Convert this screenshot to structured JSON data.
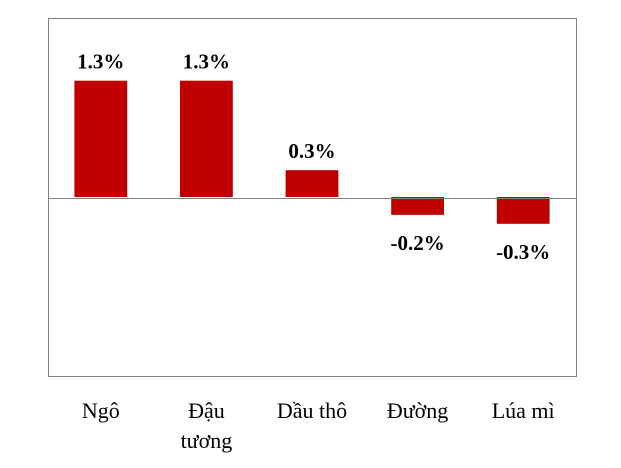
{
  "chart_data": {
    "type": "bar",
    "title": "",
    "xlabel": "",
    "ylabel": "",
    "categories": [
      "Ngô",
      "Đậu tương",
      "Dầu thô",
      "Đường",
      "Lúa mì"
    ],
    "category_lines": [
      [
        "Ngô"
      ],
      [
        "Đậu",
        "tương"
      ],
      [
        "Dầu thô"
      ],
      [
        "Đường"
      ],
      [
        "Lúa mì"
      ]
    ],
    "values": [
      1.3,
      1.3,
      0.3,
      -0.2,
      -0.3
    ],
    "value_labels": [
      "1.3%",
      "1.3%",
      "0.3%",
      "-0.2%",
      "-0.3%"
    ],
    "ylim": [
      -2.0,
      2.0
    ],
    "grid": false,
    "legend": "none",
    "bar_color": "#C00000",
    "axis_color": "#808080",
    "text_color": "#000000"
  }
}
